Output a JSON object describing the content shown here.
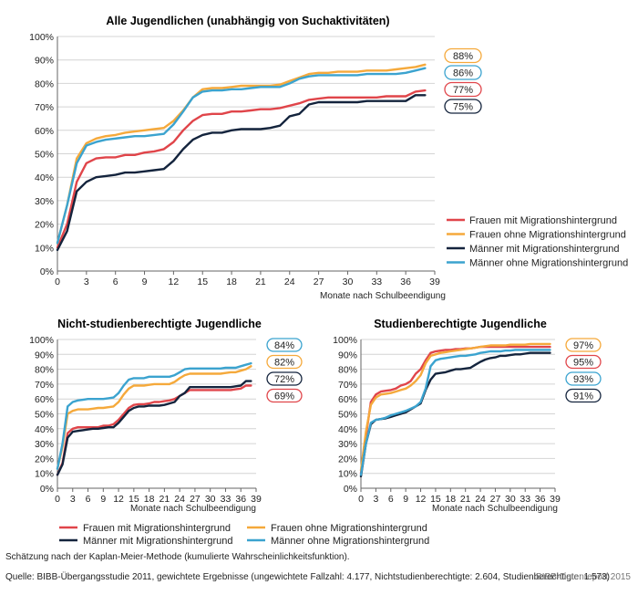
{
  "colors": {
    "frauen_mit": "#e0454a",
    "frauen_ohne": "#f5a93b",
    "maenner_mit": "#14243d",
    "maenner_ohne": "#3ba3cf"
  },
  "footnote": "Schätzung nach der Kaplan-Meier-Methode (kumulierte Wahrscheinlichkeitsfunktion).",
  "source": "Quelle: BIBB-Übergangsstudie 2011, gewichtete Ergebnisse (ungewichtete Fallzahl: 4.177, Nichtstudienberechtigte: 2.604, Studienberechtigte: 1.573)",
  "brand": "BIBB-Datenreport 2015",
  "chart_data": [
    {
      "type": "line",
      "title": "Alle Jugendlichen (unabhängig von Suchaktivitäten)",
      "xlabel": "Monate nach Schulbeendigung",
      "ylabel": "",
      "xlim": [
        0,
        39
      ],
      "ylim": [
        0,
        100
      ],
      "xticks": [
        0,
        3,
        6,
        9,
        12,
        15,
        18,
        21,
        24,
        27,
        30,
        33,
        36,
        39
      ],
      "yticks": [
        0,
        10,
        20,
        30,
        40,
        50,
        60,
        70,
        80,
        90,
        100
      ],
      "x": [
        0,
        1,
        2,
        3,
        4,
        5,
        6,
        7,
        8,
        9,
        10,
        11,
        12,
        13,
        14,
        15,
        16,
        17,
        18,
        19,
        20,
        21,
        22,
        23,
        24,
        25,
        26,
        27,
        28,
        29,
        30,
        31,
        32,
        33,
        34,
        35,
        36,
        37,
        38
      ],
      "series": [
        {
          "name": "Frauen mit Migrationshintergrund",
          "color_key": "frauen_mit",
          "values": [
            10,
            20,
            38,
            46,
            48,
            48.5,
            48.5,
            49.5,
            49.5,
            50.5,
            51,
            52,
            55,
            60,
            64,
            66.5,
            67,
            67,
            68,
            68,
            68.5,
            69,
            69,
            69.5,
            70.5,
            71.5,
            73,
            73.5,
            74,
            74,
            74,
            74,
            74,
            74,
            74.5,
            74.5,
            74.5,
            76.5,
            77
          ],
          "end_label": "77%"
        },
        {
          "name": "Frauen ohne Migrationshintergrund",
          "color_key": "frauen_ohne",
          "values": [
            12,
            28,
            48,
            54.5,
            56.5,
            57.5,
            58,
            59,
            59.5,
            60,
            60.5,
            61,
            64,
            68.5,
            74,
            77.5,
            78,
            78,
            78.5,
            79,
            79,
            79,
            79,
            79.5,
            81,
            82.5,
            84,
            84.5,
            84.5,
            85,
            85,
            85,
            85.5,
            85.5,
            85.5,
            86,
            86.5,
            87,
            88
          ],
          "end_label": "88%"
        },
        {
          "name": "Männer mit Migrationshintergrund",
          "color_key": "maenner_mit",
          "values": [
            9,
            17,
            34,
            38,
            40,
            40.5,
            41,
            42,
            42,
            42.5,
            43,
            43.5,
            47,
            52,
            56,
            58,
            59,
            59,
            60,
            60.5,
            60.5,
            60.5,
            61,
            62,
            66,
            67,
            71,
            72,
            72,
            72,
            72,
            72,
            72.5,
            72.5,
            72.5,
            72.5,
            72.5,
            75,
            75
          ],
          "end_label": "75%"
        },
        {
          "name": "Männer ohne Migrationshintergrund",
          "color_key": "maenner_ohne",
          "values": [
            12,
            28,
            46,
            53.5,
            55,
            56,
            56.5,
            57,
            57.5,
            57.5,
            58,
            58.5,
            62.5,
            68,
            74,
            76.5,
            77,
            77,
            77.5,
            77.5,
            78,
            78.5,
            78.5,
            78.5,
            80,
            82,
            83,
            83.5,
            83.5,
            83.5,
            83.5,
            83.5,
            84,
            84,
            84,
            84,
            84.5,
            85.5,
            86.5
          ],
          "end_label": "86%"
        }
      ],
      "legend": "right"
    },
    {
      "type": "line",
      "title": "Nicht-studienberechtigte Jugendliche",
      "xlabel": "Monate nach Schulbeendigung",
      "ylabel": "",
      "xlim": [
        0,
        39
      ],
      "ylim": [
        0,
        100
      ],
      "xticks": [
        0,
        3,
        6,
        9,
        12,
        15,
        18,
        21,
        24,
        27,
        30,
        33,
        36,
        39
      ],
      "yticks": [
        0,
        10,
        20,
        30,
        40,
        50,
        60,
        70,
        80,
        90,
        100
      ],
      "x": [
        0,
        1,
        2,
        3,
        4,
        5,
        6,
        7,
        8,
        9,
        10,
        11,
        12,
        13,
        14,
        15,
        16,
        17,
        18,
        19,
        20,
        21,
        22,
        23,
        24,
        25,
        26,
        27,
        28,
        29,
        30,
        31,
        32,
        33,
        34,
        35,
        36,
        37,
        38
      ],
      "series": [
        {
          "name": "Frauen mit Migrationshintergrund",
          "color_key": "frauen_mit",
          "values": [
            9,
            17,
            37,
            40,
            41,
            41,
            41,
            41,
            41,
            42,
            42,
            43,
            46,
            50,
            54,
            56,
            56.5,
            56.5,
            57,
            58,
            58,
            58.5,
            59,
            60,
            62,
            64,
            66,
            66,
            66,
            66,
            66,
            66,
            66,
            66,
            66,
            66.5,
            67,
            69,
            69
          ],
          "end_label": "69%"
        },
        {
          "name": "Frauen ohne Migrationshintergrund",
          "color_key": "frauen_ohne",
          "values": [
            13,
            28,
            50,
            52,
            53,
            53,
            53,
            53.5,
            54,
            54,
            54.5,
            55,
            58,
            63,
            67,
            69,
            69,
            69,
            69.5,
            70,
            70,
            70,
            70,
            71.5,
            74,
            76,
            77,
            77,
            77,
            77,
            77,
            77,
            77,
            77.5,
            78,
            78,
            79,
            80,
            82
          ],
          "end_label": "82%"
        },
        {
          "name": "Männer mit Migrationshintergrund",
          "color_key": "maenner_mit",
          "values": [
            9,
            16,
            34,
            38,
            38.5,
            39,
            39.5,
            40,
            40,
            40.5,
            41,
            41,
            44,
            48,
            52,
            54,
            55,
            55,
            55.5,
            55.5,
            55.5,
            56,
            57,
            58,
            62,
            64,
            68,
            68,
            68,
            68,
            68,
            68,
            68,
            68,
            68,
            68.5,
            69,
            72,
            72
          ],
          "end_label": "72%"
        },
        {
          "name": "Männer ohne Migrationshintergrund",
          "color_key": "maenner_ohne",
          "values": [
            13,
            30,
            55,
            58,
            59,
            59.5,
            60,
            60,
            60,
            60,
            60.5,
            61,
            64,
            69,
            73,
            74,
            74,
            74,
            75,
            75,
            75,
            75,
            75,
            76,
            78,
            80,
            80.5,
            80.5,
            80.5,
            80.5,
            80.5,
            80.5,
            80.5,
            81,
            81,
            81,
            82,
            83,
            84
          ],
          "end_label": "84%"
        }
      ],
      "legend": "bottom"
    },
    {
      "type": "line",
      "title": "Studienberechtigte Jugendliche",
      "xlabel": "Monate nach Schulbeendigung",
      "ylabel": "",
      "xlim": [
        0,
        39
      ],
      "ylim": [
        0,
        100
      ],
      "xticks": [
        0,
        3,
        6,
        9,
        12,
        15,
        18,
        21,
        24,
        27,
        30,
        33,
        36,
        39
      ],
      "yticks": [
        0,
        10,
        20,
        30,
        40,
        50,
        60,
        70,
        80,
        90,
        100
      ],
      "x": [
        0,
        1,
        2,
        3,
        4,
        5,
        6,
        7,
        8,
        9,
        10,
        11,
        12,
        13,
        14,
        15,
        16,
        17,
        18,
        19,
        20,
        21,
        22,
        23,
        24,
        25,
        26,
        27,
        28,
        29,
        30,
        31,
        32,
        33,
        34,
        35,
        36,
        37,
        38
      ],
      "series": [
        {
          "name": "Frauen mit Migrationshintergrund",
          "color_key": "frauen_mit",
          "values": [
            10,
            35,
            58,
            63,
            65,
            65.5,
            66,
            67,
            69,
            70,
            72,
            77,
            80,
            86,
            91,
            92,
            92.5,
            93,
            93,
            93.5,
            93.5,
            94,
            94,
            94.5,
            95,
            95,
            95,
            95,
            95,
            95,
            95,
            95,
            95,
            95,
            95,
            95,
            95,
            95,
            95
          ],
          "end_label": "95%"
        },
        {
          "name": "Frauen ohne Migrationshintergrund",
          "color_key": "frauen_ohne",
          "values": [
            12,
            38,
            56,
            61,
            63,
            63.5,
            64,
            65,
            66,
            67,
            69,
            72,
            76,
            84,
            89,
            90,
            91,
            91.5,
            92,
            92.5,
            93,
            93.5,
            94,
            94.5,
            95,
            95.5,
            96,
            96,
            96,
            96,
            96.5,
            96.5,
            96.5,
            96.5,
            97,
            97,
            97,
            97,
            97
          ],
          "end_label": "97%"
        },
        {
          "name": "Männer mit Migrationshintergrund",
          "color_key": "maenner_mit",
          "values": [
            8,
            30,
            43,
            46,
            46.5,
            47,
            48,
            49,
            50,
            51,
            53,
            55,
            57,
            66,
            73,
            77,
            77.5,
            78,
            79,
            80,
            80,
            80.5,
            81,
            83,
            85,
            86.5,
            87.5,
            88,
            89,
            89,
            89.5,
            90,
            90,
            90.5,
            91,
            91,
            91,
            91,
            91
          ],
          "end_label": "91%"
        },
        {
          "name": "Männer ohne Migrationshintergrund",
          "color_key": "maenner_ohne",
          "values": [
            9,
            30,
            44,
            46,
            46.5,
            47.5,
            49,
            50,
            51,
            52,
            53.5,
            55,
            58,
            67,
            82,
            86,
            87,
            87.5,
            88,
            88.5,
            89,
            89,
            89.5,
            90,
            91,
            91.5,
            92,
            92,
            92,
            92.5,
            92.5,
            93,
            93,
            93,
            93,
            93,
            93,
            93,
            93
          ],
          "end_label": "93%"
        }
      ],
      "legend": "bottom"
    }
  ]
}
